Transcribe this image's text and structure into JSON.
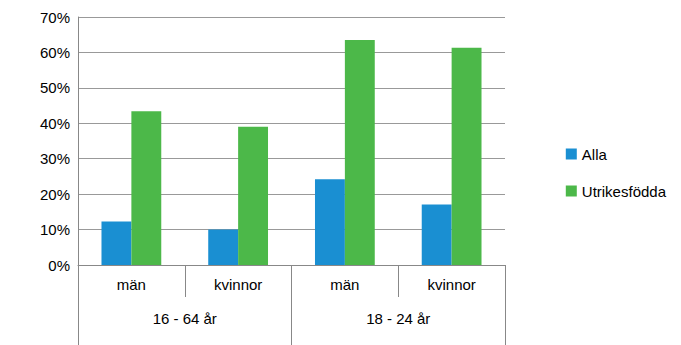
{
  "chart_data": {
    "type": "bar",
    "categories": [
      "män",
      "kvinnor",
      "män",
      "kvinnor"
    ],
    "category_groups": [
      "16 - 64 år",
      "16 - 64 år",
      "18 - 24 år",
      "18 - 24 år"
    ],
    "series": [
      {
        "name": "Alla",
        "color": "#1a8fd2",
        "values": [
          12.3,
          10.0,
          24.2,
          17.1
        ]
      },
      {
        "name": "Utrikesfödda",
        "color": "#4cb849",
        "values": [
          43.4,
          39.0,
          63.5,
          61.3
        ]
      }
    ],
    "ylim": [
      0,
      70
    ],
    "yticks": [
      {
        "value": 0,
        "label": "0%"
      },
      {
        "value": 10,
        "label": "10%"
      },
      {
        "value": 20,
        "label": "20%"
      },
      {
        "value": 30,
        "label": "30%"
      },
      {
        "value": 40,
        "label": "40%"
      },
      {
        "value": 50,
        "label": "50%"
      },
      {
        "value": 60,
        "label": "60%"
      },
      {
        "value": 70,
        "label": "70%"
      }
    ],
    "grid": true,
    "legend": "right"
  }
}
